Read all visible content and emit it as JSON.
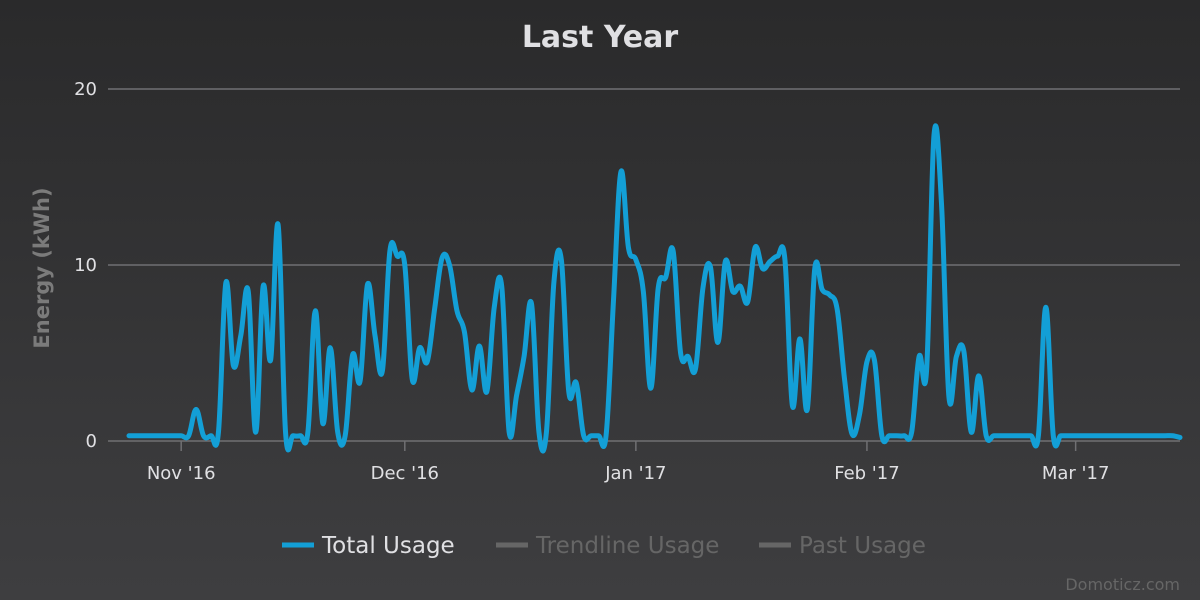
{
  "chart_data": {
    "type": "line",
    "title": "Last Year",
    "xlabel": "",
    "ylabel": "Energy (kWh)",
    "ylim": [
      0,
      20
    ],
    "yticks": [
      "0",
      "10",
      "20"
    ],
    "xlim": [
      "2016-10-25",
      "2017-03-15"
    ],
    "xticks": [
      {
        "date": "2016-11-01",
        "label": "Nov '16"
      },
      {
        "date": "2016-12-01",
        "label": "Dec '16"
      },
      {
        "date": "2017-01-01",
        "label": "Jan '17"
      },
      {
        "date": "2017-02-01",
        "label": "Feb '17"
      },
      {
        "date": "2017-03-01",
        "label": "Mar '17"
      }
    ],
    "grid": true,
    "legend_position": "bottom-center",
    "series": [
      {
        "name": "Total Usage",
        "color": "#139fd6",
        "visible": true,
        "points": [
          [
            "2016-10-25",
            0.3
          ],
          [
            "2016-10-26",
            0.3
          ],
          [
            "2016-10-27",
            0.3
          ],
          [
            "2016-10-28",
            0.3
          ],
          [
            "2016-10-29",
            0.3
          ],
          [
            "2016-10-30",
            0.3
          ],
          [
            "2016-10-31",
            0.3
          ],
          [
            "2016-11-01",
            0.3
          ],
          [
            "2016-11-02",
            0.3
          ],
          [
            "2016-11-03",
            1.8
          ],
          [
            "2016-11-04",
            0.3
          ],
          [
            "2016-11-05",
            0.3
          ],
          [
            "2016-11-06",
            0.5
          ],
          [
            "2016-11-07",
            9.0
          ],
          [
            "2016-11-08",
            4.3
          ],
          [
            "2016-11-09",
            6.0
          ],
          [
            "2016-11-10",
            8.5
          ],
          [
            "2016-11-11",
            0.5
          ],
          [
            "2016-11-12",
            8.8
          ],
          [
            "2016-11-13",
            4.6
          ],
          [
            "2016-11-14",
            12.3
          ],
          [
            "2016-11-15",
            0.5
          ],
          [
            "2016-11-16",
            0.3
          ],
          [
            "2016-11-17",
            0.3
          ],
          [
            "2016-11-18",
            0.5
          ],
          [
            "2016-11-19",
            7.4
          ],
          [
            "2016-11-20",
            1.0
          ],
          [
            "2016-11-21",
            5.3
          ],
          [
            "2016-11-22",
            0.5
          ],
          [
            "2016-11-23",
            0.3
          ],
          [
            "2016-11-24",
            4.9
          ],
          [
            "2016-11-25",
            3.4
          ],
          [
            "2016-11-26",
            8.9
          ],
          [
            "2016-11-27",
            6.0
          ],
          [
            "2016-11-28",
            4.0
          ],
          [
            "2016-11-29",
            10.8
          ],
          [
            "2016-11-30",
            10.5
          ],
          [
            "2016-12-01",
            10.0
          ],
          [
            "2016-12-02",
            3.5
          ],
          [
            "2016-12-03",
            5.3
          ],
          [
            "2016-12-04",
            4.5
          ],
          [
            "2016-12-05",
            7.5
          ],
          [
            "2016-12-06",
            10.4
          ],
          [
            "2016-12-07",
            10.0
          ],
          [
            "2016-12-08",
            7.4
          ],
          [
            "2016-12-09",
            6.2
          ],
          [
            "2016-12-10",
            2.9
          ],
          [
            "2016-12-11",
            5.4
          ],
          [
            "2016-12-12",
            2.8
          ],
          [
            "2016-12-13",
            7.6
          ],
          [
            "2016-12-14",
            8.8
          ],
          [
            "2016-12-15",
            0.5
          ],
          [
            "2016-12-16",
            2.6
          ],
          [
            "2016-12-17",
            4.8
          ],
          [
            "2016-12-18",
            7.8
          ],
          [
            "2016-12-19",
            0.5
          ],
          [
            "2016-12-20",
            0.5
          ],
          [
            "2016-12-21",
            9.0
          ],
          [
            "2016-12-22",
            10.3
          ],
          [
            "2016-12-23",
            2.8
          ],
          [
            "2016-12-24",
            3.3
          ],
          [
            "2016-12-25",
            0.3
          ],
          [
            "2016-12-26",
            0.3
          ],
          [
            "2016-12-27",
            0.3
          ],
          [
            "2016-12-28",
            0.3
          ],
          [
            "2016-12-29",
            8.0
          ],
          [
            "2016-12-30",
            15.3
          ],
          [
            "2016-12-31",
            11.0
          ],
          [
            "2017-01-01",
            10.3
          ],
          [
            "2017-01-02",
            8.5
          ],
          [
            "2017-01-03",
            3.0
          ],
          [
            "2017-01-04",
            8.7
          ],
          [
            "2017-01-05",
            9.3
          ],
          [
            "2017-01-06",
            10.8
          ],
          [
            "2017-01-07",
            5.0
          ],
          [
            "2017-01-08",
            4.8
          ],
          [
            "2017-01-09",
            4.1
          ],
          [
            "2017-01-10",
            8.7
          ],
          [
            "2017-01-11",
            9.9
          ],
          [
            "2017-01-12",
            5.6
          ],
          [
            "2017-01-13",
            10.2
          ],
          [
            "2017-01-14",
            8.5
          ],
          [
            "2017-01-15",
            8.8
          ],
          [
            "2017-01-16",
            7.9
          ],
          [
            "2017-01-17",
            11.0
          ],
          [
            "2017-01-18",
            9.8
          ],
          [
            "2017-01-19",
            10.2
          ],
          [
            "2017-01-20",
            10.5
          ],
          [
            "2017-01-21",
            10.3
          ],
          [
            "2017-01-22",
            2.0
          ],
          [
            "2017-01-23",
            5.8
          ],
          [
            "2017-01-24",
            1.8
          ],
          [
            "2017-01-25",
            9.8
          ],
          [
            "2017-01-26",
            8.6
          ],
          [
            "2017-01-27",
            8.3
          ],
          [
            "2017-01-28",
            7.5
          ],
          [
            "2017-01-29",
            3.5
          ],
          [
            "2017-01-30",
            0.4
          ],
          [
            "2017-01-31",
            1.5
          ],
          [
            "2017-02-01",
            4.5
          ],
          [
            "2017-02-02",
            4.6
          ],
          [
            "2017-02-03",
            0.3
          ],
          [
            "2017-02-04",
            0.3
          ],
          [
            "2017-02-05",
            0.3
          ],
          [
            "2017-02-06",
            0.3
          ],
          [
            "2017-02-07",
            0.5
          ],
          [
            "2017-02-08",
            4.8
          ],
          [
            "2017-02-09",
            4.0
          ],
          [
            "2017-02-10",
            17.4
          ],
          [
            "2017-02-11",
            13.5
          ],
          [
            "2017-02-12",
            2.5
          ],
          [
            "2017-02-13",
            4.8
          ],
          [
            "2017-02-14",
            5.1
          ],
          [
            "2017-02-15",
            0.5
          ],
          [
            "2017-02-16",
            3.7
          ],
          [
            "2017-02-17",
            0.3
          ],
          [
            "2017-02-18",
            0.3
          ],
          [
            "2017-02-19",
            0.3
          ],
          [
            "2017-02-20",
            0.3
          ],
          [
            "2017-02-21",
            0.3
          ],
          [
            "2017-02-22",
            0.3
          ],
          [
            "2017-02-23",
            0.3
          ],
          [
            "2017-02-24",
            0.3
          ],
          [
            "2017-02-25",
            7.6
          ],
          [
            "2017-02-26",
            0.3
          ],
          [
            "2017-02-27",
            0.3
          ],
          [
            "2017-02-28",
            0.3
          ],
          [
            "2017-03-01",
            0.3
          ],
          [
            "2017-03-02",
            0.3
          ],
          [
            "2017-03-03",
            0.3
          ],
          [
            "2017-03-04",
            0.3
          ],
          [
            "2017-03-05",
            0.3
          ],
          [
            "2017-03-06",
            0.3
          ],
          [
            "2017-03-07",
            0.3
          ],
          [
            "2017-03-08",
            0.3
          ],
          [
            "2017-03-09",
            0.3
          ],
          [
            "2017-03-10",
            0.3
          ],
          [
            "2017-03-11",
            0.3
          ],
          [
            "2017-03-12",
            0.3
          ],
          [
            "2017-03-13",
            0.3
          ],
          [
            "2017-03-14",
            0.3
          ],
          [
            "2017-03-15",
            0.2
          ]
        ]
      },
      {
        "name": "Trendline Usage",
        "color": "#555555",
        "visible": false,
        "points": []
      },
      {
        "name": "Past Usage",
        "color": "#555555",
        "visible": false,
        "points": []
      }
    ]
  },
  "legend": {
    "items": [
      {
        "label": "Total Usage",
        "color": "#139fd6",
        "text_color": "#e0e0e3"
      },
      {
        "label": "Trendline Usage",
        "color": "#666666",
        "text_color": "#666666"
      },
      {
        "label": "Past Usage",
        "color": "#666666",
        "text_color": "#666666"
      }
    ]
  },
  "credits": "Domoticz.com"
}
